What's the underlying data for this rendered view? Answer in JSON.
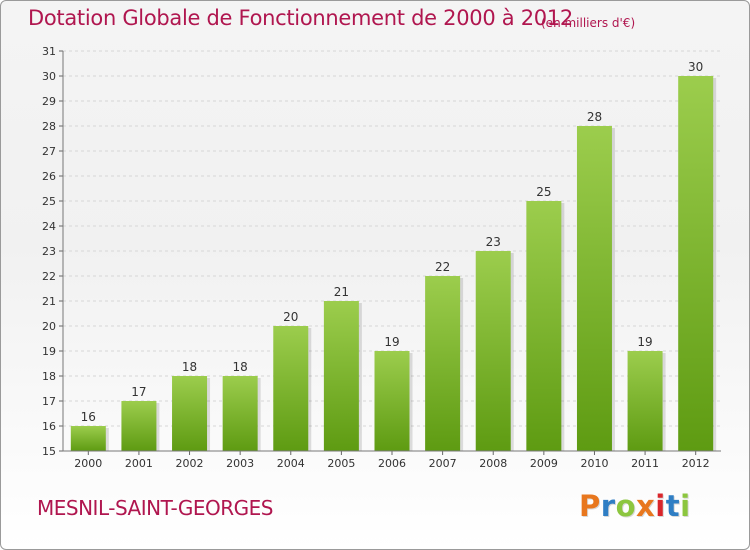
{
  "header": {
    "title": "Dotation Globale de Fonctionnement de 2000 à 2012",
    "unit": "(en milliers d'€)"
  },
  "footer": {
    "commune": "MESNIL-SAINT-GEORGES",
    "logo": "Proxiti",
    "logo_colors": [
      "#e8771e",
      "#2f7ec4",
      "#8cc63f",
      "#e8771e",
      "#d9262b",
      "#2f7ec4",
      "#8cc63f"
    ]
  },
  "colors": {
    "bar_top": "#9ccd4d",
    "bar_bottom": "#5e9b12",
    "text_accent": "#b0164f"
  },
  "chart_data": {
    "type": "bar",
    "categories": [
      "2000",
      "2001",
      "2002",
      "2003",
      "2004",
      "2005",
      "2006",
      "2007",
      "2008",
      "2009",
      "2010",
      "2011",
      "2012"
    ],
    "values": [
      16,
      17,
      18,
      18,
      20,
      21,
      19,
      22,
      23,
      25,
      28,
      19,
      30
    ],
    "title": "Dotation Globale de Fonctionnement de 2000 à 2012",
    "ylabel": "(en milliers d'€)",
    "xlabel": "",
    "ylim": [
      15,
      31
    ],
    "yticks": [
      15,
      16,
      17,
      18,
      19,
      20,
      21,
      22,
      23,
      24,
      25,
      26,
      27,
      28,
      29,
      30,
      31
    ],
    "grid": "horizontal",
    "data_labels": true
  }
}
